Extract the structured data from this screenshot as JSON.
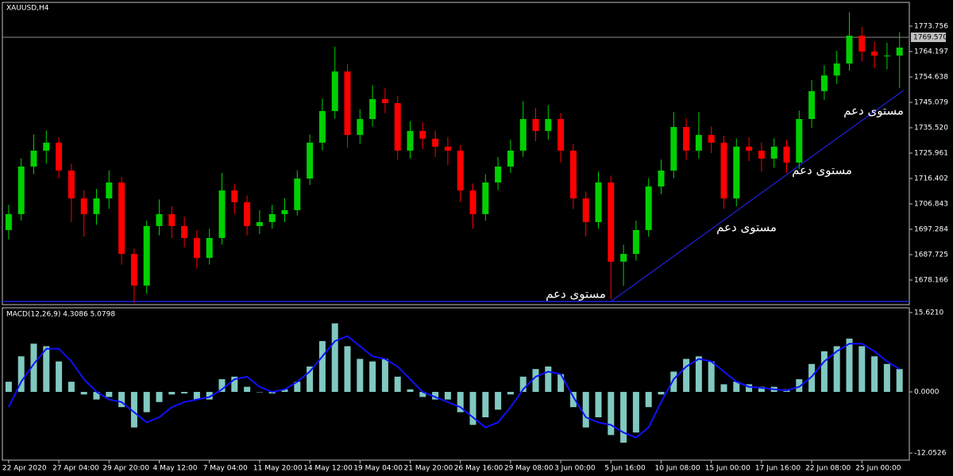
{
  "chart_data": [
    {
      "type": "candlestick",
      "title": "XAUUSD,H4",
      "categories": [
        "22 Apr 2020",
        null,
        null,
        null,
        "27 Apr 04:00",
        null,
        null,
        null,
        "29 Apr 20:00",
        null,
        null,
        null,
        "4 May 12:00",
        null,
        null,
        null,
        "7 May 04:00",
        null,
        null,
        null,
        "11 May 20:00",
        null,
        null,
        null,
        "14 May 12:00",
        null,
        null,
        null,
        "19 May 04:00",
        null,
        null,
        null,
        "21 May 20:00",
        null,
        null,
        null,
        "26 May 16:00",
        null,
        null,
        null,
        "29 May 08:00",
        null,
        null,
        null,
        "3 Jun 00:00",
        null,
        null,
        null,
        "5 Jun 16:00",
        null,
        null,
        null,
        "10 Jun 08:00",
        null,
        null,
        null,
        "15 Jun 00:00",
        null,
        null,
        null,
        "17 Jun 16:00",
        null,
        null,
        null,
        "22 Jun 08:00",
        null,
        null,
        null,
        "25 Jun 00:00",
        null,
        null,
        null
      ],
      "open": [
        1697.0,
        1703.0,
        1720.9,
        1726.9,
        1729.9,
        1719.4,
        1708.9,
        1703.0,
        1708.9,
        1714.9,
        1688.0,
        1676.1,
        1698.5,
        1703.0,
        1698.5,
        1694.0,
        1686.5,
        1694.0,
        1711.9,
        1707.5,
        1698.5,
        1700.0,
        1703.0,
        1704.5,
        1716.4,
        1729.9,
        1741.8,
        1756.7,
        1732.8,
        1738.8,
        1746.3,
        1744.8,
        1726.9,
        1734.3,
        1731.4,
        1728.4,
        1726.9,
        1711.9,
        1703.0,
        1714.9,
        1720.9,
        1726.9,
        1738.8,
        1734.3,
        1738.8,
        1726.9,
        1708.9,
        1700.0,
        1714.9,
        1685.1,
        1688.0,
        1697.0,
        1713.4,
        1719.4,
        1735.8,
        1726.9,
        1732.8,
        1729.9,
        1708.9,
        1728.4,
        1726.9,
        1723.9,
        1728.4,
        1722.4,
        1738.8,
        1749.3,
        1755.2,
        1759.7,
        1770.2,
        1764.2,
        1762.7,
        1762.7
      ],
      "high": [
        1706.5,
        1724.0,
        1733.0,
        1734.5,
        1732.0,
        1722.0,
        1712.0,
        1712.5,
        1719.5,
        1717.0,
        1690.0,
        1700.5,
        1708.5,
        1706.0,
        1702.0,
        1697.0,
        1697.5,
        1718.5,
        1714.5,
        1710.0,
        1704.5,
        1706.5,
        1709.0,
        1719.5,
        1733.0,
        1746.5,
        1766.0,
        1759.5,
        1742.5,
        1751.5,
        1750.5,
        1747.5,
        1738.0,
        1737.5,
        1734.5,
        1732.0,
        1729.0,
        1714.5,
        1718.0,
        1724.5,
        1731.0,
        1745.5,
        1743.0,
        1744.0,
        1741.0,
        1729.5,
        1711.5,
        1719.0,
        1717.5,
        1691.5,
        1700.5,
        1716.5,
        1723.5,
        1741.5,
        1739.0,
        1741.5,
        1736.0,
        1732.5,
        1731.5,
        1732.0,
        1730.0,
        1731.5,
        1731.0,
        1742.0,
        1753.5,
        1759.0,
        1764.5,
        1779.0,
        1773.5,
        1768.0,
        1767.5,
        1771.5
      ],
      "low": [
        1693.5,
        1700.5,
        1718.0,
        1722.0,
        1716.5,
        1700.0,
        1694.5,
        1699.0,
        1705.0,
        1684.0,
        1669.5,
        1673.0,
        1695.0,
        1694.0,
        1690.5,
        1682.5,
        1684.0,
        1691.5,
        1703.0,
        1695.0,
        1695.5,
        1697.5,
        1700.0,
        1702.5,
        1714.0,
        1727.0,
        1739.0,
        1728.0,
        1729.5,
        1736.0,
        1741.0,
        1723.5,
        1724.0,
        1727.5,
        1724.5,
        1721.5,
        1707.5,
        1697.5,
        1700.5,
        1712.0,
        1718.5,
        1724.5,
        1730.5,
        1731.0,
        1722.5,
        1705.0,
        1694.5,
        1697.5,
        1671.0,
        1676.0,
        1685.5,
        1694.5,
        1710.5,
        1716.5,
        1723.5,
        1724.0,
        1726.0,
        1705.0,
        1706.0,
        1723.0,
        1719.0,
        1720.5,
        1718.5,
        1720.0,
        1735.5,
        1746.0,
        1752.0,
        1757.0,
        1760.5,
        1758.0,
        1757.5,
        1750.5
      ],
      "close": [
        1703.0,
        1720.9,
        1726.9,
        1729.9,
        1719.4,
        1708.9,
        1703.0,
        1708.9,
        1714.9,
        1688.0,
        1676.1,
        1698.5,
        1703.0,
        1698.5,
        1694.0,
        1686.5,
        1694.0,
        1711.9,
        1707.5,
        1698.5,
        1700.0,
        1703.0,
        1704.5,
        1716.4,
        1729.9,
        1741.8,
        1756.7,
        1732.8,
        1738.8,
        1746.3,
        1744.8,
        1726.9,
        1734.3,
        1731.4,
        1728.4,
        1726.9,
        1711.9,
        1703.0,
        1714.9,
        1720.9,
        1726.9,
        1738.8,
        1734.3,
        1738.8,
        1726.9,
        1708.9,
        1700.0,
        1714.9,
        1685.1,
        1688.0,
        1697.0,
        1713.4,
        1719.4,
        1735.8,
        1726.9,
        1732.8,
        1729.9,
        1708.9,
        1728.4,
        1726.9,
        1723.9,
        1728.4,
        1722.4,
        1738.8,
        1749.3,
        1755.2,
        1759.7,
        1770.2,
        1764.2,
        1762.7,
        1762.7,
        1765.7
      ],
      "up_color": "#00d000",
      "down_color": "#ff0000",
      "ylim": [
        1668.91,
        1782.72
      ],
      "yticks": [
        1773.756,
        1764.197,
        1754.638,
        1745.079,
        {
          "value": 1735.52,
          "label": "1735.520"
        },
        1725.961,
        1716.402,
        1706.843,
        1697.284,
        1687.725,
        1678.166
      ],
      "price_line": {
        "value": 1769.57,
        "label": "1769.570",
        "color": "#8a8a8a"
      },
      "support_line": {
        "value": 1670.1,
        "color": "#2020e0"
      },
      "trendline": {
        "x": [
          48,
          71.3
        ],
        "y": [
          1670.1,
          1749.5
        ],
        "color": "#2020e0"
      },
      "annotations": [
        "مستوى دعم",
        "مستوى دعم",
        "مستوى دعم",
        "مستوى دعم"
      ]
    },
    {
      "type": "bar",
      "title": "MACD(12,26,9) 4.3086 5.0798",
      "values": [
        2,
        7,
        9.5,
        9,
        6,
        2,
        -0.5,
        -1.5,
        -1,
        -3,
        -7,
        -4,
        -2,
        -0.5,
        -0.3,
        -1.5,
        -1.5,
        2.5,
        3,
        1,
        0,
        -0.3,
        0.5,
        2,
        5,
        10,
        13.5,
        9,
        6.5,
        6,
        6.5,
        3,
        0.5,
        -1,
        -1.5,
        -1.5,
        -4,
        -6.5,
        -5,
        -3.5,
        -0.5,
        3,
        4.5,
        5,
        3.5,
        -3,
        -7,
        -5,
        -8.5,
        -10,
        -8,
        -3,
        -0.5,
        4,
        6.5,
        7,
        6,
        1.5,
        2,
        1.5,
        1,
        1,
        0.5,
        2.5,
        5.5,
        8,
        9,
        10.5,
        9,
        7,
        5.5,
        4.5
      ],
      "color": "#80c8c0",
      "signal": {
        "values": [
          -3,
          2,
          5.5,
          8.5,
          8.5,
          6,
          2.5,
          0,
          -1.5,
          -2,
          -4,
          -6,
          -5,
          -3,
          -2,
          -1.5,
          -1,
          0.5,
          2.5,
          3,
          1,
          0,
          0.5,
          2,
          4,
          7,
          10,
          11,
          9,
          7,
          6.5,
          5,
          2.5,
          0,
          -1,
          -2,
          -3,
          -5,
          -7,
          -6,
          -3,
          0.5,
          3,
          4,
          3.5,
          -1,
          -5,
          -6,
          -6.5,
          -8,
          -9,
          -7,
          -2,
          2.5,
          5,
          6.5,
          6,
          4,
          2,
          1,
          0.8,
          0.5,
          0.3,
          1,
          3,
          6,
          8,
          9.5,
          9.5,
          8,
          6,
          4.5
        ],
        "color": "#1010ff"
      },
      "ylim": [
        -13.44,
        16.56
      ],
      "yticks": [
        {
          "value": 15.621,
          "label": "15.6210"
        },
        {
          "value": 0,
          "label": "0.0000"
        },
        -12.0526
      ]
    }
  ]
}
